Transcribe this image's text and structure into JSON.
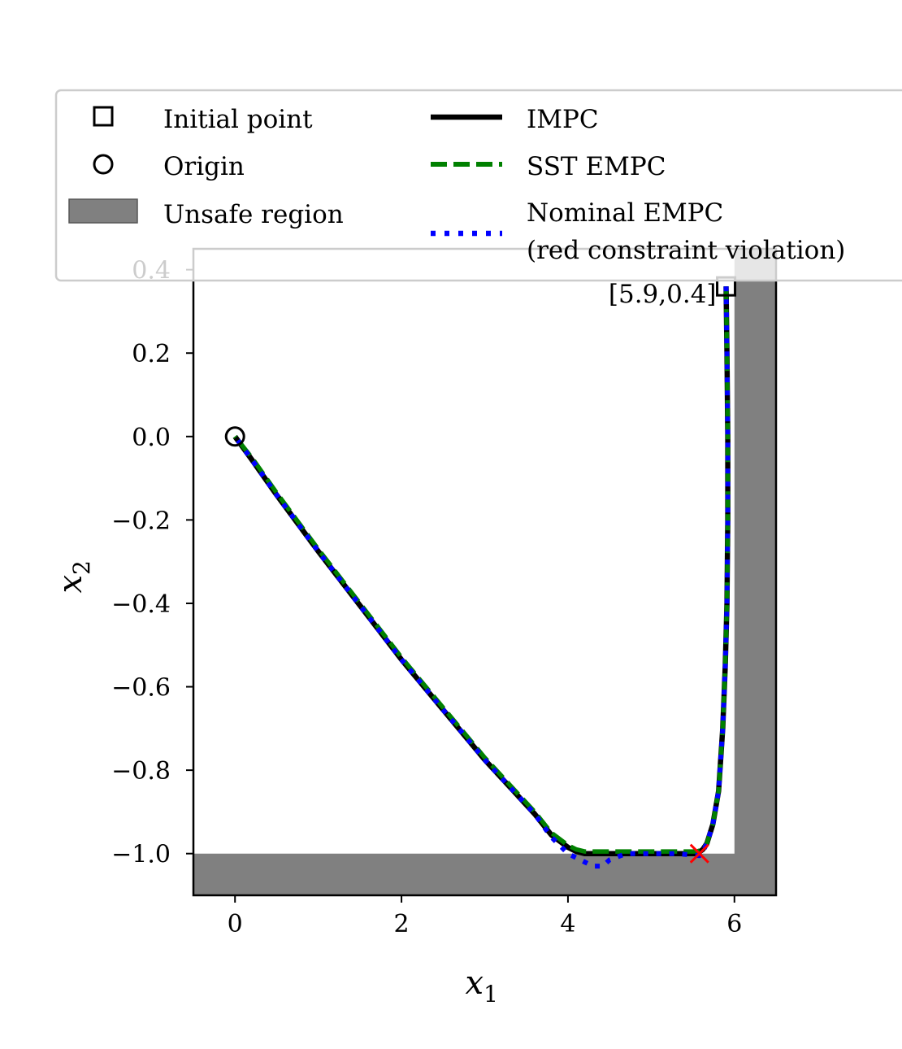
{
  "chart_data": {
    "type": "line",
    "xlabel": "x",
    "xlabel_sub": "1",
    "ylabel": "x",
    "ylabel_sub": "2",
    "xlim": [
      -0.5,
      6.5
    ],
    "ylim": [
      -1.1,
      0.45
    ],
    "xticks": [
      0,
      2,
      4,
      6
    ],
    "xtick_labels": [
      "0",
      "2",
      "4",
      "6"
    ],
    "yticks": [
      0.4,
      0.2,
      0.0,
      -0.2,
      -0.4,
      -0.6,
      -0.8,
      -1.0
    ],
    "ytick_labels": [
      "0.4",
      "0.2",
      "0.0",
      "−0.2",
      "−0.4",
      "−0.6",
      "−0.8",
      "−1.0"
    ],
    "grid": false,
    "legend_position": "top",
    "initial_point": {
      "x": 5.9,
      "y": 0.36,
      "label": "[5.9,0.4]"
    },
    "origin_point": {
      "x": 0.0,
      "y": 0.0
    },
    "violation_point": {
      "x": 5.58,
      "y": -1.0
    },
    "unsafe_region": {
      "polygon": [
        [
          -0.5,
          -1.1
        ],
        [
          6.5,
          -1.1
        ],
        [
          6.5,
          0.45
        ],
        [
          6.0,
          0.45
        ],
        [
          6.0,
          -1.0
        ],
        [
          -0.5,
          -1.0
        ]
      ]
    },
    "series": [
      {
        "name": "IMPC",
        "color": "#000000",
        "style": "solid",
        "x": [
          5.9,
          5.91,
          5.92,
          5.92,
          5.91,
          5.89,
          5.86,
          5.81,
          5.74,
          5.67,
          5.62,
          5.55,
          5.3,
          5.0,
          4.6,
          4.4,
          4.2,
          4.1,
          4.0,
          3.8,
          3.6,
          3.3,
          3.0,
          2.5,
          2.0,
          1.5,
          1.0,
          0.5,
          0.2,
          0.0
        ],
        "y": [
          0.36,
          0.2,
          0.0,
          -0.2,
          -0.4,
          -0.55,
          -0.7,
          -0.85,
          -0.93,
          -0.975,
          -0.99,
          -1.0,
          -1.0,
          -1.0,
          -1.0,
          -1.0,
          -1.0,
          -0.995,
          -0.985,
          -0.955,
          -0.905,
          -0.84,
          -0.775,
          -0.655,
          -0.535,
          -0.405,
          -0.275,
          -0.14,
          -0.055,
          0.0
        ]
      },
      {
        "name": "SST EMPC",
        "color": "#008000",
        "style": "dashed",
        "x": [
          5.9,
          5.91,
          5.92,
          5.92,
          5.91,
          5.89,
          5.86,
          5.81,
          5.74,
          5.67,
          5.62,
          5.55,
          5.3,
          5.0,
          4.6,
          4.4,
          4.2,
          4.1,
          4.0,
          3.8,
          3.6,
          3.3,
          3.0,
          2.5,
          2.0,
          1.5,
          1.0,
          0.5,
          0.2,
          0.0
        ],
        "y": [
          0.36,
          0.2,
          0.0,
          -0.2,
          -0.4,
          -0.55,
          -0.7,
          -0.85,
          -0.93,
          -0.975,
          -0.99,
          -0.995,
          -0.995,
          -0.995,
          -0.995,
          -0.995,
          -0.995,
          -0.99,
          -0.98,
          -0.95,
          -0.9,
          -0.835,
          -0.77,
          -0.65,
          -0.53,
          -0.4,
          -0.27,
          -0.135,
          -0.05,
          0.0
        ]
      },
      {
        "name": "Nominal EMPC",
        "color": "#0000ff",
        "style": "dotted",
        "x": [
          5.9,
          5.91,
          5.92,
          5.92,
          5.91,
          5.89,
          5.86,
          5.81,
          5.74,
          5.67,
          5.62,
          5.58,
          5.3,
          5.0,
          4.7,
          4.5,
          4.42,
          4.3,
          4.2,
          4.0,
          3.8,
          3.6,
          3.3,
          3.0,
          2.5,
          2.0,
          1.5,
          1.0,
          0.5,
          0.2,
          0.0
        ],
        "y": [
          0.36,
          0.2,
          0.0,
          -0.2,
          -0.4,
          -0.55,
          -0.7,
          -0.85,
          -0.93,
          -0.975,
          -0.995,
          -1.005,
          -1.0,
          -1.0,
          -1.0,
          -1.015,
          -1.03,
          -1.03,
          -1.02,
          -1.0,
          -0.96,
          -0.905,
          -0.84,
          -0.775,
          -0.655,
          -0.535,
          -0.405,
          -0.275,
          -0.14,
          -0.055,
          0.0
        ]
      }
    ],
    "legend": [
      {
        "label": "Initial point",
        "marker": "square"
      },
      {
        "label": "Origin",
        "marker": "circle"
      },
      {
        "label": "Unsafe region",
        "marker": "patch"
      },
      {
        "label": "IMPC",
        "marker": "solid"
      },
      {
        "label": "SST EMPC",
        "marker": "dashed"
      },
      {
        "label": "Nominal EMPC",
        "label_line2": "(red constraint violation)",
        "marker": "dotted"
      }
    ],
    "colors": {
      "unsafe": "#808080",
      "violation": "#ff0000"
    }
  }
}
